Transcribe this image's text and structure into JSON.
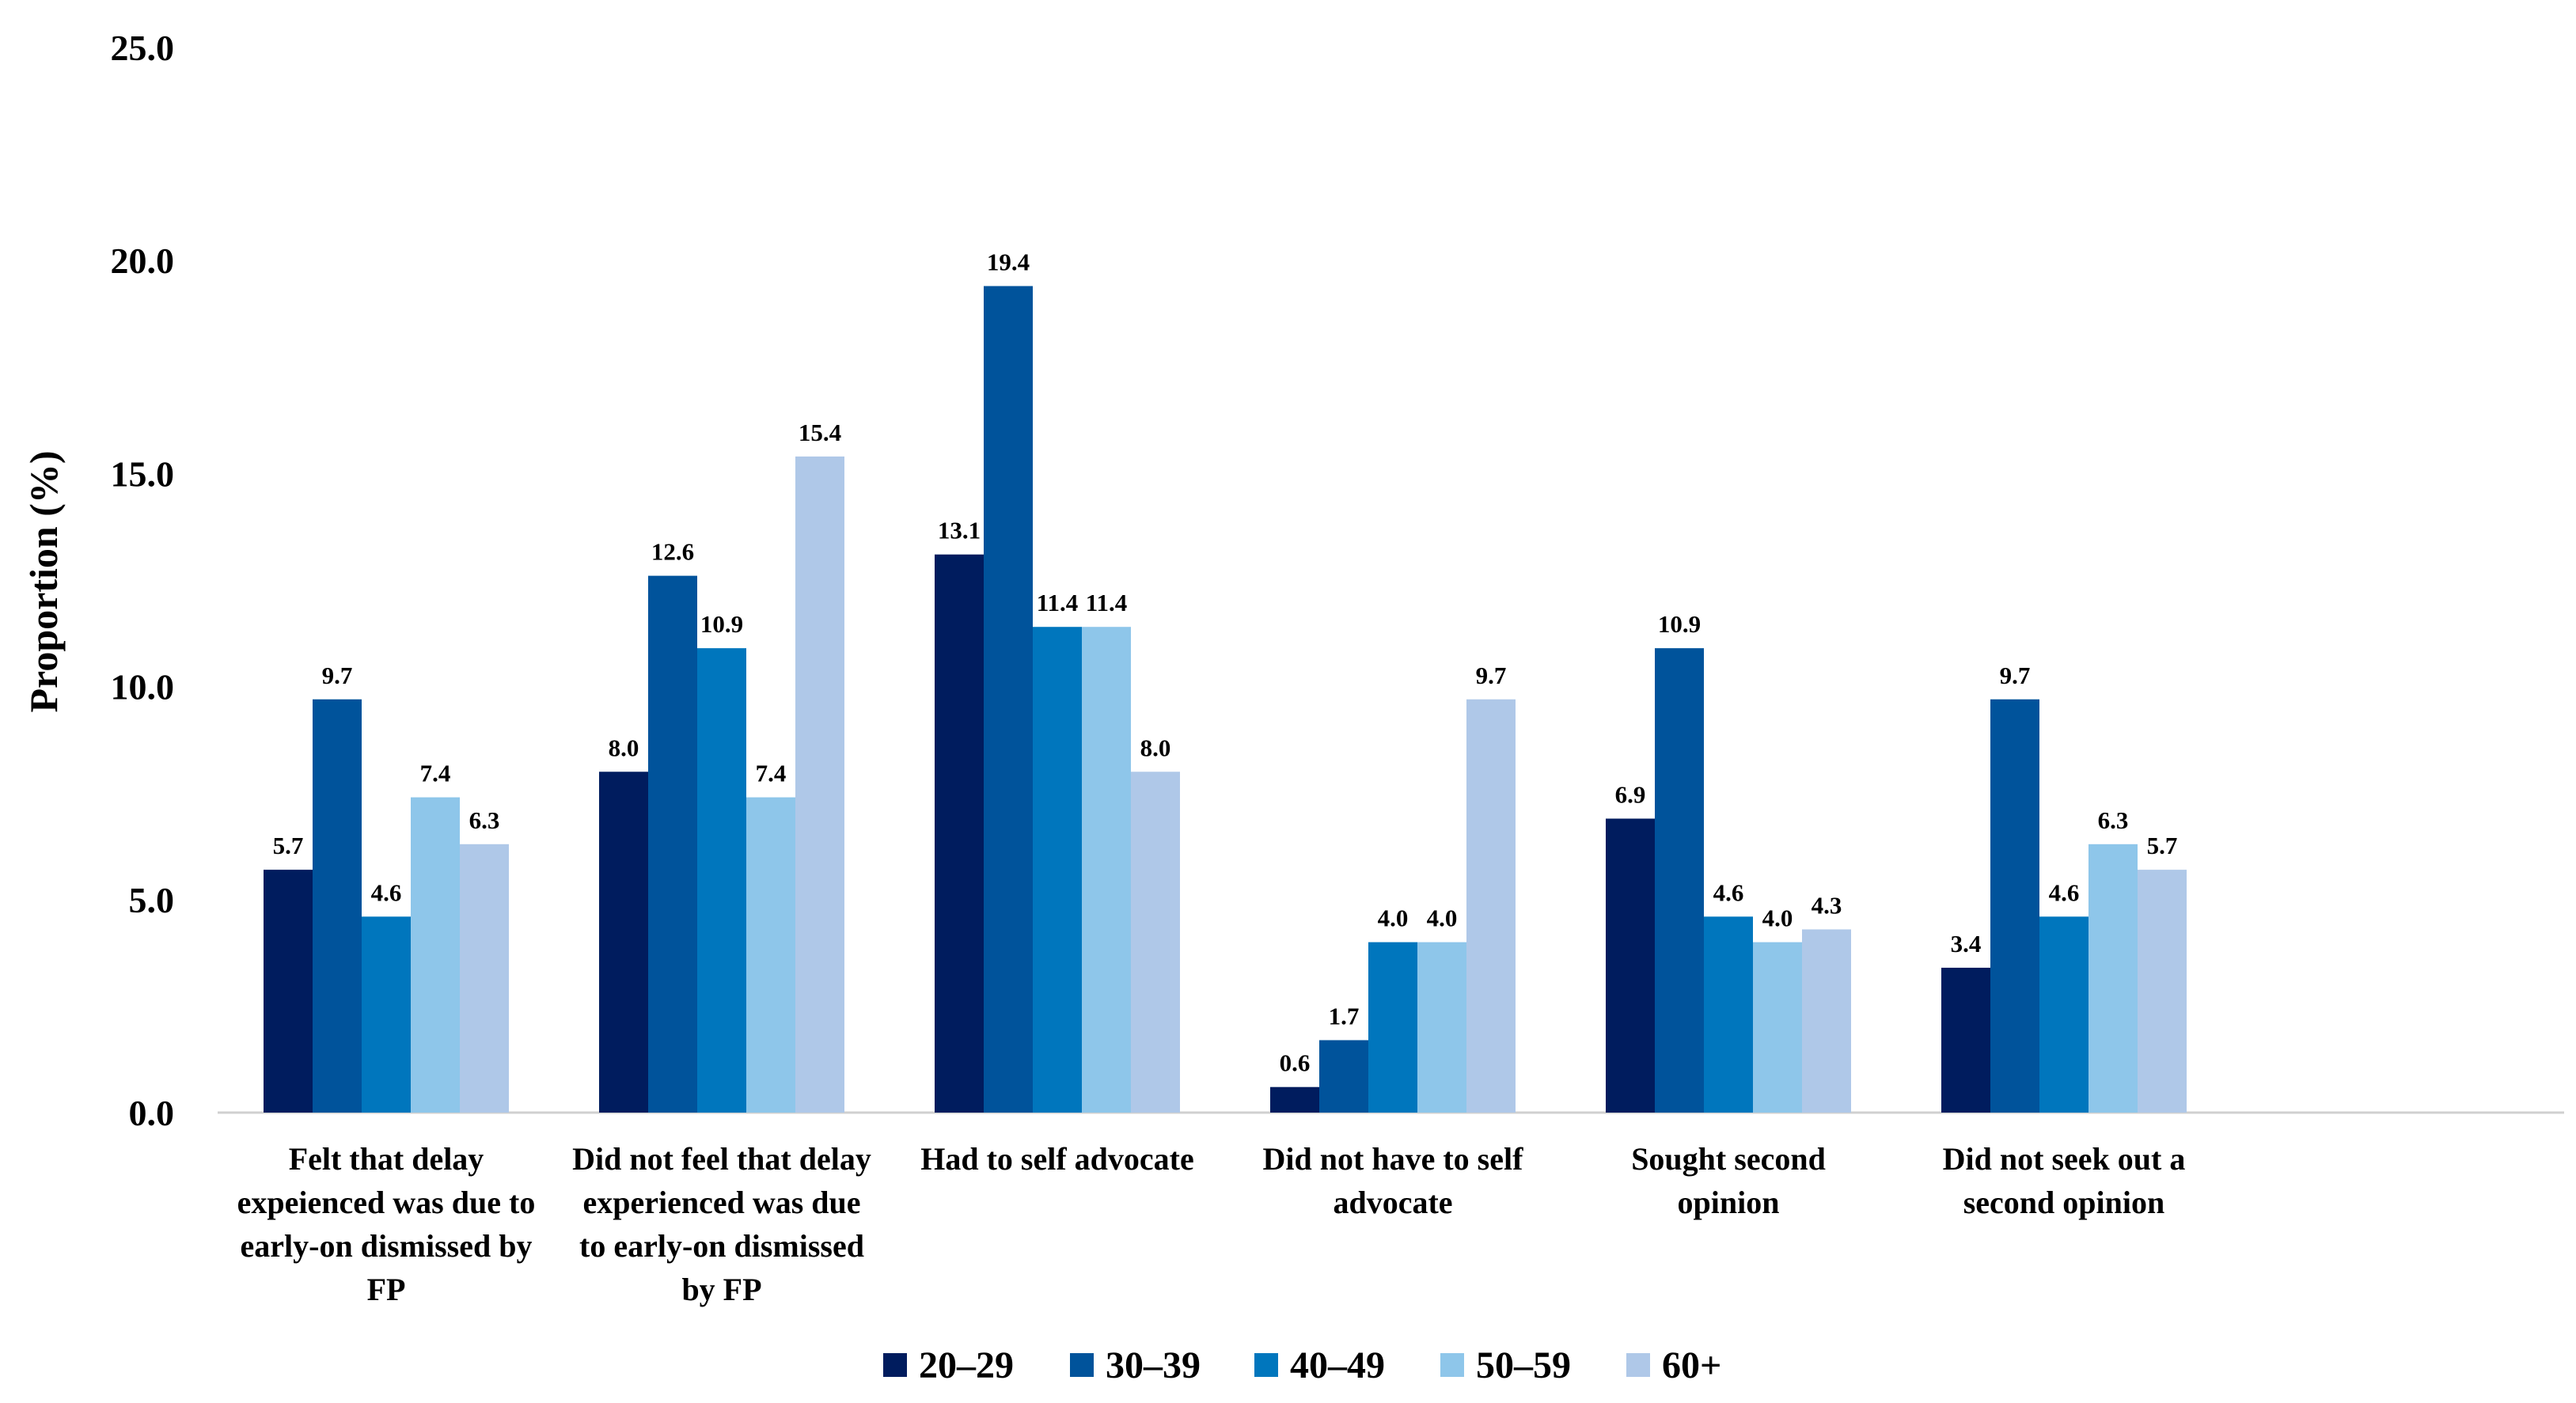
{
  "chart_data": {
    "type": "bar",
    "title": "",
    "xlabel": "",
    "ylabel": "Proportion (%)",
    "ylim": [
      0,
      25
    ],
    "yticks": [
      "0.0",
      "5.0",
      "10.0",
      "15.0",
      "20.0",
      "25.0"
    ],
    "grid": false,
    "legend_position": "bottom",
    "categories": [
      [
        "Felt that delay",
        "expeienced was due to",
        "early-on dismissed by",
        "FP"
      ],
      [
        "Did not feel that delay",
        "experienced was due",
        "to early-on dismissed",
        "by FP"
      ],
      [
        "Had to self advocate"
      ],
      [
        "Did not have to self",
        "advocate"
      ],
      [
        "Sought second",
        "opinion"
      ],
      [
        "Did not seek out a",
        "second opinion"
      ]
    ],
    "series": [
      {
        "name": "20–29",
        "color": "#001c5e",
        "values": [
          5.7,
          8.0,
          13.1,
          0.6,
          6.9,
          3.4
        ],
        "labels": [
          "5.7",
          "8.0",
          "13.1",
          "0.6",
          "6.9",
          "3.4"
        ]
      },
      {
        "name": "30–39",
        "color": "#00539b",
        "values": [
          9.7,
          12.6,
          19.4,
          1.7,
          10.9,
          9.7
        ],
        "labels": [
          "9.7",
          "12.6",
          "19.4",
          "1.7",
          "10.9",
          "9.7"
        ]
      },
      {
        "name": "40–49",
        "color": "#0076bd",
        "values": [
          4.6,
          10.9,
          11.4,
          4.0,
          4.6,
          4.6
        ],
        "labels": [
          "4.6",
          "10.9",
          "11.4",
          "4.0",
          "4.6",
          "4.6"
        ]
      },
      {
        "name": "50–59",
        "color": "#8ec6ea",
        "values": [
          7.4,
          7.4,
          11.4,
          4.0,
          4.0,
          6.3
        ],
        "labels": [
          "7.4",
          "7.4",
          "11.4",
          "4.0",
          "4.0",
          "6.3"
        ]
      },
      {
        "name": "60+",
        "color": "#afc8e8",
        "values": [
          6.3,
          15.4,
          8.0,
          9.7,
          4.3,
          5.7
        ],
        "labels": [
          "6.3",
          "15.4",
          "8.0",
          "9.7",
          "4.3",
          "5.7"
        ]
      }
    ]
  }
}
